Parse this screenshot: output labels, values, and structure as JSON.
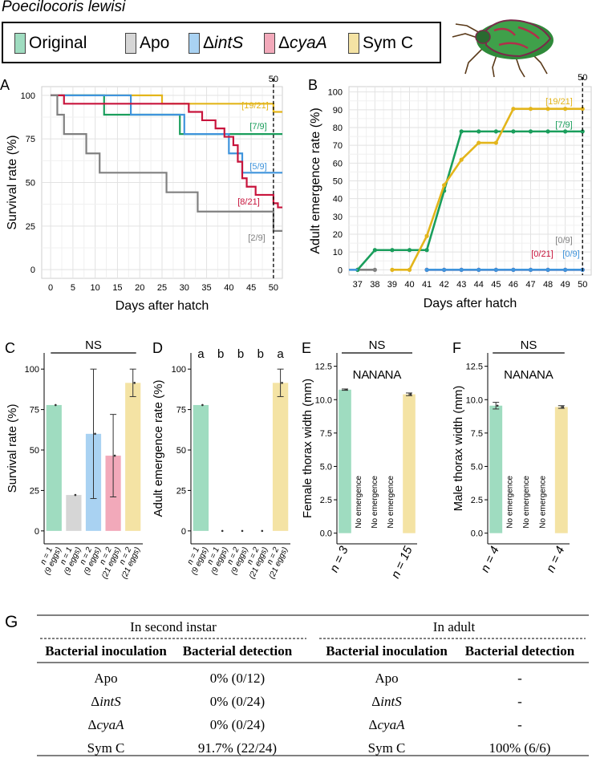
{
  "species": "Poecilocoris lewisi",
  "legend": [
    {
      "label_prefix": "",
      "label_main": "Original",
      "color": "#9fdcc0"
    },
    {
      "label_prefix": "",
      "label_main": "Apo",
      "color": "#d6d6d6"
    },
    {
      "label_prefix": "Δ",
      "label_main": "intS",
      "color": "#a9d2f2"
    },
    {
      "label_prefix": "Δ",
      "label_main": "cyaA",
      "color": "#f2a9ba"
    },
    {
      "label_prefix": "",
      "label_main": "Sym C",
      "color": "#f4e3a4"
    }
  ],
  "series_colors": {
    "Original": "#1a9e5c",
    "Apo": "#808080",
    "intS": "#3f94dc",
    "cyaA": "#c8143c",
    "SymC": "#e3b51b"
  },
  "chart_data": [
    {
      "panel": "A",
      "type": "line",
      "style": "step",
      "xlabel": "Days after hatch",
      "ylabel": "Survival rate (%)",
      "xlim": [
        -2,
        52
      ],
      "ylim": [
        -5,
        105
      ],
      "xticks": [
        0,
        5,
        10,
        15,
        20,
        25,
        30,
        35,
        40,
        45,
        50
      ],
      "yticks": [
        0,
        25,
        50,
        75,
        100
      ],
      "vline": {
        "x": 50,
        "label": "50"
      },
      "series": [
        {
          "name": "SymC",
          "label": "[19/21]",
          "points": [
            [
              0,
              100
            ],
            [
              25,
              100
            ],
            [
              25,
              95.2
            ],
            [
              50,
              95.2
            ],
            [
              50,
              90.5
            ],
            [
              52,
              90.5
            ]
          ]
        },
        {
          "name": "Original",
          "label": "[7/9]",
          "points": [
            [
              0,
              100
            ],
            [
              12,
              100
            ],
            [
              12,
              88.9
            ],
            [
              29,
              88.9
            ],
            [
              29,
              77.8
            ],
            [
              52,
              77.8
            ]
          ]
        },
        {
          "name": "intS",
          "label": "[5/9]",
          "points": [
            [
              0,
              100
            ],
            [
              18,
              100
            ],
            [
              18,
              88.9
            ],
            [
              30,
              88.9
            ],
            [
              30,
              77.8
            ],
            [
              40,
              77.8
            ],
            [
              40,
              66.7
            ],
            [
              43,
              66.7
            ],
            [
              43,
              55.6
            ],
            [
              52,
              55.6
            ]
          ]
        },
        {
          "name": "cyaA",
          "label": "[8/21]",
          "points": [
            [
              0,
              100
            ],
            [
              3,
              100
            ],
            [
              3,
              95.2
            ],
            [
              31,
              95.2
            ],
            [
              31,
              90.5
            ],
            [
              34,
              90.5
            ],
            [
              34,
              85.7
            ],
            [
              37,
              85.7
            ],
            [
              37,
              81
            ],
            [
              39,
              81
            ],
            [
              39,
              76.2
            ],
            [
              41,
              76.2
            ],
            [
              41,
              71.4
            ],
            [
              42,
              71.4
            ],
            [
              42,
              61.9
            ],
            [
              43,
              61.9
            ],
            [
              43,
              52.4
            ],
            [
              44,
              52.4
            ],
            [
              44,
              47.6
            ],
            [
              46,
              47.6
            ],
            [
              46,
              42.9
            ],
            [
              50,
              42.9
            ],
            [
              50,
              38.1
            ],
            [
              51,
              38.1
            ],
            [
              51,
              35.7
            ],
            [
              52,
              35.7
            ]
          ]
        },
        {
          "name": "Apo",
          "label": "[2/9]",
          "points": [
            [
              0,
              100
            ],
            [
              1.5,
              100
            ],
            [
              1.5,
              88.9
            ],
            [
              3,
              88.9
            ],
            [
              3,
              77.8
            ],
            [
              8,
              77.8
            ],
            [
              8,
              66.7
            ],
            [
              11,
              66.7
            ],
            [
              11,
              55.6
            ],
            [
              26,
              55.6
            ],
            [
              26,
              44.4
            ],
            [
              33,
              44.4
            ],
            [
              33,
              33.3
            ],
            [
              50,
              33.3
            ],
            [
              50,
              22.2
            ],
            [
              52,
              22.2
            ]
          ]
        }
      ],
      "labels_order": [
        "[19/21]",
        "[7/9]",
        "[5/9]",
        "[8/21]",
        "[2/9]"
      ]
    },
    {
      "panel": "B",
      "type": "line",
      "style": "points",
      "xlabel": "Days after hatch",
      "ylabel": "Adult emergence rate (%)",
      "categories": [
        37,
        38,
        39,
        40,
        41,
        42,
        43,
        44,
        45,
        46,
        47,
        48,
        49,
        50
      ],
      "xlim": [
        36.5,
        50.5
      ],
      "ylim": [
        -3,
        103
      ],
      "yticks": [
        0,
        10,
        20,
        30,
        40,
        50,
        60,
        70,
        80,
        90,
        100
      ],
      "vline": {
        "x": 50,
        "label": "50"
      },
      "series": [
        {
          "name": "Original",
          "label": "[7/9]",
          "x": [
            37,
            38,
            39,
            40,
            41,
            42,
            43,
            44,
            45,
            46,
            47,
            48,
            49,
            50
          ],
          "values": [
            0,
            11.1,
            11.1,
            11.1,
            11.1,
            44.4,
            77.8,
            77.8,
            77.8,
            77.8,
            77.8,
            77.8,
            77.8,
            77.8
          ]
        },
        {
          "name": "SymC",
          "label": "[19/21]",
          "x": [
            39,
            40,
            41,
            42,
            43,
            44,
            45,
            46,
            47,
            48,
            49,
            50
          ],
          "values": [
            0,
            0,
            19,
            47.6,
            61.9,
            71.4,
            71.4,
            90.5,
            90.5,
            90.5,
            90.5,
            90.5
          ]
        },
        {
          "name": "Apo",
          "label": "[0/9]",
          "x": [
            37,
            38
          ],
          "values": [
            0,
            0
          ]
        },
        {
          "name": "cyaA",
          "label": "[0/21]",
          "x": [
            41,
            42,
            43,
            44,
            45,
            46,
            47,
            48,
            49,
            50
          ],
          "values": [
            0,
            0,
            0,
            0,
            0,
            0,
            0,
            0,
            0,
            0
          ]
        },
        {
          "name": "intS",
          "label": "[0/9]",
          "x": [
            41,
            42,
            43,
            44,
            45,
            46,
            47,
            48,
            49,
            50
          ],
          "values": [
            0,
            0,
            0,
            0,
            0,
            0,
            0,
            0,
            0,
            0
          ]
        }
      ]
    },
    {
      "panel": "C",
      "type": "bar",
      "ylabel": "Survival rate (%)",
      "ylim": [
        -8,
        110
      ],
      "yticks": [
        0,
        25,
        50,
        75,
        100
      ],
      "categories": [
        "Original",
        "Apo",
        "intS",
        "cyaA",
        "SymC"
      ],
      "values": [
        77.8,
        22.2,
        60,
        46.5,
        91.5
      ],
      "err_low": [
        77.8,
        22.2,
        20,
        21,
        83
      ],
      "err_high": [
        77.8,
        22.2,
        100,
        72,
        100
      ],
      "significance": "NS",
      "n_labels": [
        [
          "n = 1",
          "(9 eggs)"
        ],
        [
          "n = 1",
          "(9 eggs)"
        ],
        [
          "n = 2",
          "(9 eggs)"
        ],
        [
          "n = 2",
          "(21 eggs)"
        ],
        [
          "n = 2",
          "(21 eggs)"
        ]
      ]
    },
    {
      "panel": "D",
      "type": "bar",
      "ylabel": "Adult emergence rate (%)",
      "ylim": [
        -8,
        110
      ],
      "yticks": [
        0,
        25,
        50,
        75,
        100
      ],
      "categories": [
        "Original",
        "Apo",
        "intS",
        "cyaA",
        "SymC"
      ],
      "values": [
        77.8,
        0,
        0,
        0,
        91.5
      ],
      "err_low": [
        77.8,
        0,
        0,
        0,
        83
      ],
      "err_high": [
        77.8,
        0,
        0,
        0,
        100
      ],
      "letters": [
        "a",
        "b",
        "b",
        "b",
        "a"
      ],
      "n_labels": [
        [
          "n = 1",
          "(9 eggs)"
        ],
        [
          "n = 1",
          "(9 eggs)"
        ],
        [
          "n = 2",
          "(9 eggs)"
        ],
        [
          "n = 2",
          "(21 eggs)"
        ],
        [
          "n = 2",
          "(21 eggs)"
        ]
      ]
    },
    {
      "panel": "E",
      "type": "bar",
      "ylabel": "Female thorax width (mm)",
      "ylim": [
        -0.8,
        13.5
      ],
      "yticks": [
        0.0,
        2.5,
        5.0,
        7.5,
        10.0,
        12.5
      ],
      "categories": [
        "Original",
        "Apo",
        "intS",
        "cyaA",
        "SymC"
      ],
      "values": [
        10.75,
        null,
        null,
        null,
        10.4
      ],
      "err_low": [
        10.7,
        null,
        null,
        null,
        10.3
      ],
      "err_high": [
        10.8,
        null,
        null,
        null,
        10.5
      ],
      "significance": "NS",
      "na_label": "NA",
      "no_emergence_label": "No emergence",
      "n_labels": [
        "n =  3",
        "",
        "",
        "",
        "n = 15"
      ]
    },
    {
      "panel": "F",
      "type": "bar",
      "ylabel": "Male thorax width (mm)",
      "ylim": [
        -0.8,
        13.5
      ],
      "yticks": [
        0.0,
        2.5,
        5.0,
        7.5,
        10.0,
        12.5
      ],
      "categories": [
        "Original",
        "Apo",
        "intS",
        "cyaA",
        "SymC"
      ],
      "values": [
        9.55,
        null,
        null,
        null,
        9.45
      ],
      "err_low": [
        9.3,
        null,
        null,
        null,
        9.35
      ],
      "err_high": [
        9.8,
        null,
        null,
        null,
        9.55
      ],
      "significance": "NS",
      "na_label": "NA",
      "no_emergence_label": "No emergence",
      "n_labels": [
        "n =  4",
        "",
        "",
        "",
        "n =  4"
      ]
    },
    {
      "panel": "G",
      "type": "table",
      "section_second": "In second instar",
      "section_adult": "In adult",
      "header_inoc": "Bacterial inoculation",
      "header_detect": "Bacterial detection",
      "rows": [
        {
          "prefix": "",
          "name": "Apo",
          "italic": false,
          "second": "0% (0/12)",
          "adult": "-"
        },
        {
          "prefix": "Δ",
          "name": "intS",
          "italic": true,
          "second": "0% (0/24)",
          "adult": "-"
        },
        {
          "prefix": "Δ",
          "name": "cyaA",
          "italic": true,
          "second": "0% (0/24)",
          "adult": "-"
        },
        {
          "prefix": "",
          "name": "Sym C",
          "italic": false,
          "second": "91.7% (22/24)",
          "adult": "100% (6/6)"
        }
      ]
    }
  ],
  "panel_letters": [
    "A",
    "B",
    "C",
    "D",
    "E",
    "F",
    "G"
  ]
}
